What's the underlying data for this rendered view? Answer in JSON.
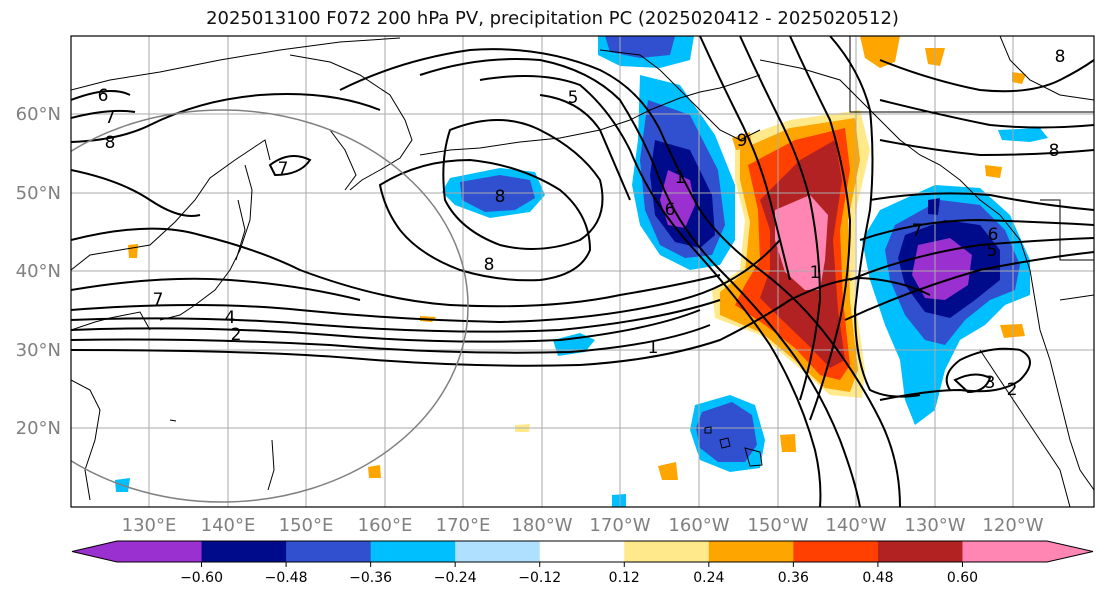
{
  "title": "2025013100 F072 200 hPa PV, precipitation PC (2025020412 - 2025020512)",
  "map": {
    "lat_labels": [
      "60°N",
      "50°N",
      "40°N",
      "30°N",
      "20°N"
    ],
    "lon_labels": [
      "130°E",
      "140°E",
      "150°E",
      "160°E",
      "170°E",
      "180°W",
      "170°W",
      "160°W",
      "150°W",
      "140°W",
      "130°W",
      "120°W"
    ],
    "contour_labels": [
      "6",
      "7",
      "8",
      "7",
      "8",
      "8",
      "7",
      "4",
      "2",
      "5",
      "1",
      "9",
      "8",
      "1",
      "6",
      "5",
      "7",
      "8",
      "2",
      "3",
      "6",
      "1"
    ]
  },
  "colorbar": {
    "tick_labels": [
      "−0.60",
      "−0.48",
      "−0.36",
      "−0.24",
      "−0.12",
      "0.12",
      "0.24",
      "0.36",
      "0.48",
      "0.60"
    ],
    "colors": [
      "#9b30d0",
      "#000b8c",
      "#3050d0",
      "#00bfff",
      "#b0e0ff",
      "#ffffff",
      "#ffe98a",
      "#ffa500",
      "#ff4000",
      "#b22222",
      "#ff85b3",
      "#ff85b3"
    ]
  }
}
